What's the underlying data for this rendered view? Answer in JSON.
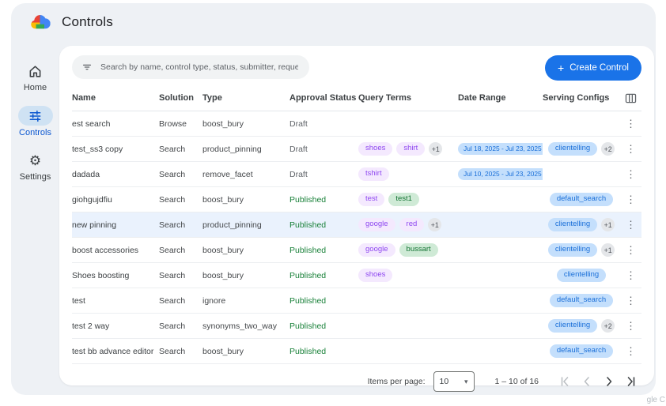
{
  "app": {
    "title": "Controls",
    "watermark": "gle C"
  },
  "sidebar": {
    "items": [
      {
        "label": "Home",
        "icon": "home-icon",
        "active": false
      },
      {
        "label": "Controls",
        "icon": "controls-icon",
        "active": true
      },
      {
        "label": "Settings",
        "icon": "settings-icon",
        "active": false
      }
    ]
  },
  "toolbar": {
    "search_placeholder": "Search by name, control type, status, submitter, requested on",
    "create_label": "Create Control"
  },
  "icons": {
    "kebab": "⋮",
    "dropdown_arrow": "▾",
    "plus": "+",
    "gear": "⚙"
  },
  "table": {
    "headers": [
      "Name",
      "Solution",
      "Type",
      "Approval Status",
      "Query Terms",
      "Date Range",
      "Serving Configs"
    ],
    "rows": [
      {
        "name": "est search",
        "solution": "Browse",
        "type": "boost_bury",
        "status": "Draft",
        "query_terms": [],
        "extra_terms": "",
        "date_range": "",
        "serving_configs": [],
        "extra_configs": "",
        "highlight": false
      },
      {
        "name": "test_ss3 copy",
        "solution": "Search",
        "type": "product_pinning",
        "status": "Draft",
        "query_terms": [
          {
            "label": "shoes",
            "color": "purple"
          },
          {
            "label": "shirt",
            "color": "purple"
          }
        ],
        "extra_terms": "+1",
        "date_range": "Jul 18, 2025 - Jul 23, 2025",
        "serving_configs": [
          "clientelling"
        ],
        "extra_configs": "+2",
        "highlight": false
      },
      {
        "name": "dadada",
        "solution": "Search",
        "type": "remove_facet",
        "status": "Draft",
        "query_terms": [
          {
            "label": "tshirt",
            "color": "purple"
          }
        ],
        "extra_terms": "",
        "date_range": "Jul 10, 2025 - Jul 23, 2025",
        "serving_configs": [],
        "extra_configs": "",
        "highlight": false
      },
      {
        "name": "giohgujdfiu",
        "solution": "Search",
        "type": "boost_bury",
        "status": "Published",
        "query_terms": [
          {
            "label": "test",
            "color": "purple"
          },
          {
            "label": "test1",
            "color": "green"
          }
        ],
        "extra_terms": "",
        "date_range": "",
        "serving_configs": [
          "default_search"
        ],
        "extra_configs": "",
        "highlight": false
      },
      {
        "name": "new pinning",
        "solution": "Search",
        "type": "product_pinning",
        "status": "Published",
        "query_terms": [
          {
            "label": "google",
            "color": "purple"
          },
          {
            "label": "red",
            "color": "purple"
          }
        ],
        "extra_terms": "+1",
        "date_range": "",
        "serving_configs": [
          "clientelling"
        ],
        "extra_configs": "+1",
        "highlight": true
      },
      {
        "name": "boost accessories",
        "solution": "Search",
        "type": "boost_bury",
        "status": "Published",
        "query_terms": [
          {
            "label": "google",
            "color": "purple"
          },
          {
            "label": "bussart",
            "color": "green"
          }
        ],
        "extra_terms": "",
        "date_range": "",
        "serving_configs": [
          "clientelling"
        ],
        "extra_configs": "+1",
        "highlight": false
      },
      {
        "name": "Shoes boosting",
        "solution": "Search",
        "type": "boost_bury",
        "status": "Published",
        "query_terms": [
          {
            "label": "shoes",
            "color": "purple"
          }
        ],
        "extra_terms": "",
        "date_range": "",
        "serving_configs": [
          "clientelling"
        ],
        "extra_configs": "",
        "highlight": false
      },
      {
        "name": "test",
        "solution": "Search",
        "type": "ignore",
        "status": "Published",
        "query_terms": [],
        "extra_terms": "",
        "date_range": "",
        "serving_configs": [
          "default_search"
        ],
        "extra_configs": "",
        "highlight": false
      },
      {
        "name": "test 2 way",
        "solution": "Search",
        "type": "synonyms_two_way",
        "status": "Published",
        "query_terms": [],
        "extra_terms": "",
        "date_range": "",
        "serving_configs": [
          "clientelling"
        ],
        "extra_configs": "+2",
        "highlight": false
      },
      {
        "name": "test bb advance editor",
        "solution": "Search",
        "type": "boost_bury",
        "status": "Published",
        "query_terms": [],
        "extra_terms": "",
        "date_range": "",
        "serving_configs": [
          "default_search"
        ],
        "extra_configs": "",
        "highlight": false
      }
    ]
  },
  "pagination": {
    "items_per_page_label": "Items per page:",
    "page_size": "10",
    "range_label": "1 – 10 of 16"
  },
  "colors": {
    "accent_blue": "#1a73e8",
    "published_green": "#188038",
    "draft_gray": "#5f6368",
    "term_purple_bg": "#f4e9fe",
    "term_purple_text": "#8e47f0",
    "term_green_bg": "#cfead6",
    "term_green_text": "#137333",
    "chip_blue_bg": "#c4dffc",
    "chip_blue_text": "#1a6fd8",
    "highlight_row": "#eaf2fd",
    "app_background": "#eef1f5",
    "sidebar_active_pill": "#cfe2f3"
  }
}
